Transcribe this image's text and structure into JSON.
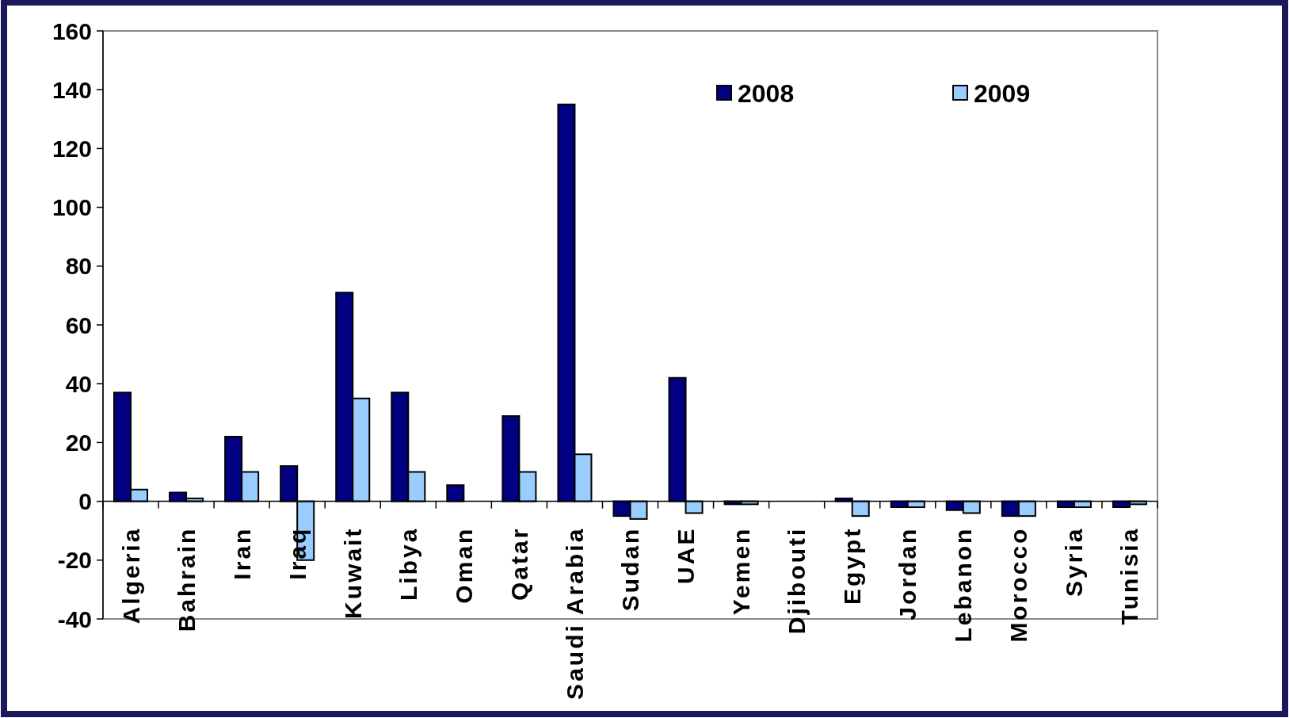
{
  "chart_data": {
    "type": "bar",
    "categories": [
      "Algeria",
      "Bahrain",
      "Iran",
      "Iraq",
      "Kuwait",
      "Libya",
      "Oman",
      "Qatar",
      "Saudi Arabia",
      "Sudan",
      "UAE",
      "Yemen",
      "Djibouti",
      "Egypt",
      "Jordan",
      "Lebanon",
      "Morocco",
      "Syria",
      "Tunisia"
    ],
    "series": [
      {
        "name": "2008",
        "color": "#000080",
        "values": [
          37,
          3,
          22,
          12,
          71,
          37,
          5.5,
          29,
          135,
          -5,
          42,
          -1,
          null,
          1,
          -2,
          -3,
          -5,
          -2,
          -2
        ]
      },
      {
        "name": "2009",
        "color": "#99ccff",
        "values": [
          4,
          1,
          10,
          -20,
          35,
          10,
          null,
          10,
          16,
          -6,
          -4,
          -1,
          null,
          -5,
          -2,
          -4,
          -5,
          -2,
          -1
        ]
      }
    ],
    "ylim": [
      -40,
      160
    ],
    "yticks": [
      -40,
      -20,
      0,
      20,
      40,
      60,
      80,
      100,
      120,
      140,
      160
    ],
    "legend": "top right"
  }
}
